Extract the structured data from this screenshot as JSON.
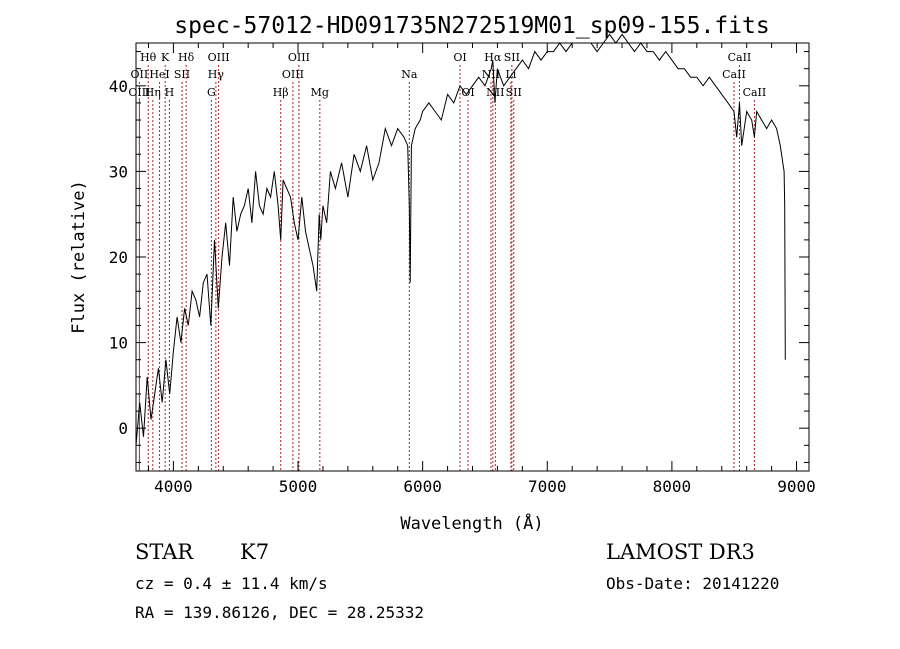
{
  "chart_data": {
    "type": "line",
    "title": "spec-57012-HD091735N272519M01_sp09-155.fits",
    "xlabel": "Wavelength (Å)",
    "ylabel": "Flux (relative)",
    "xlim": [
      3700,
      9100
    ],
    "ylim": [
      -5,
      45
    ],
    "xticks": [
      4000,
      5000,
      6000,
      7000,
      8000,
      9000
    ],
    "yticks": [
      0,
      10,
      20,
      30,
      40
    ],
    "grid": false,
    "line_color": "#000000",
    "marker_color": "#b22222",
    "series": [
      {
        "x": [
          3700,
          3730,
          3760,
          3790,
          3820,
          3850,
          3880,
          3910,
          3940,
          3970,
          4000,
          4030,
          4060,
          4090,
          4120,
          4150,
          4180,
          4210,
          4240,
          4270,
          4300,
          4330,
          4360,
          4390,
          4420,
          4450,
          4480,
          4510,
          4540,
          4570,
          4600,
          4630,
          4660,
          4690,
          4720,
          4750,
          4780,
          4810,
          4840,
          4861,
          4880,
          4910,
          4940,
          4970,
          5000,
          5030,
          5060,
          5090,
          5120,
          5150,
          5170,
          5183,
          5200,
          5230,
          5260,
          5300,
          5350,
          5400,
          5450,
          5500,
          5550,
          5600,
          5650,
          5700,
          5750,
          5800,
          5850,
          5880,
          5893,
          5900,
          5910,
          5940,
          5980,
          6000,
          6050,
          6100,
          6150,
          6200,
          6250,
          6300,
          6350,
          6400,
          6450,
          6500,
          6550,
          6563,
          6580,
          6600,
          6650,
          6700,
          6750,
          6800,
          6850,
          6900,
          6950,
          7000,
          7050,
          7100,
          7150,
          7200,
          7250,
          7300,
          7350,
          7400,
          7450,
          7500,
          7550,
          7600,
          7650,
          7700,
          7750,
          7800,
          7850,
          7900,
          7950,
          8000,
          8050,
          8100,
          8150,
          8200,
          8250,
          8300,
          8350,
          8400,
          8450,
          8498,
          8520,
          8542,
          8560,
          8600,
          8640,
          8662,
          8680,
          8720,
          8760,
          8800,
          8840,
          8870,
          8890,
          8900,
          8905,
          8910
        ],
        "y": [
          -2,
          3,
          -1,
          6,
          1,
          4,
          7,
          3,
          8,
          4,
          9,
          13,
          10,
          14,
          12,
          16,
          15,
          13,
          17,
          18,
          12,
          22,
          14,
          20,
          24,
          19,
          27,
          23,
          25,
          26,
          28,
          24,
          30,
          26,
          25,
          28,
          27,
          30,
          26,
          22,
          29,
          28,
          27,
          24,
          22,
          27,
          23,
          21,
          19,
          16,
          25,
          22,
          26,
          24,
          30,
          28,
          31,
          27,
          32,
          30,
          33,
          29,
          31,
          35,
          33,
          35,
          34,
          33,
          26,
          17,
          33,
          35,
          36,
          37,
          38,
          37,
          36,
          39,
          38,
          40,
          39,
          40,
          41,
          40,
          42,
          43,
          38,
          42,
          40,
          41,
          42,
          43,
          42,
          44,
          43,
          44,
          44,
          45,
          44,
          45,
          45,
          45,
          45,
          44,
          45,
          46,
          45,
          46,
          45,
          44,
          45,
          44,
          44,
          43,
          44,
          43,
          42,
          42,
          41,
          41,
          40,
          41,
          40,
          39,
          38,
          37,
          34,
          38,
          33,
          37,
          36,
          34,
          37,
          36,
          35,
          36,
          35,
          33,
          31,
          30,
          26,
          8
        ]
      }
    ],
    "line_markers": [
      {
        "label": "Hθ",
        "x": 3798,
        "row": 0
      },
      {
        "label": "OII",
        "x": 3727,
        "row": 1
      },
      {
        "label": "OIII",
        "x": 3727,
        "row": 2
      },
      {
        "label": "K",
        "x": 3934,
        "row": 0
      },
      {
        "label": "HeI",
        "x": 3889,
        "row": 1
      },
      {
        "label": "Hη",
        "x": 3835,
        "row": 2
      },
      {
        "label": "H",
        "x": 3968,
        "row": 2
      },
      {
        "label": "SII",
        "x": 4069,
        "row": 1
      },
      {
        "label": "Hδ",
        "x": 4102,
        "row": 0
      },
      {
        "label": "OIII",
        "x": 4363,
        "row": 0
      },
      {
        "label": "Hγ",
        "x": 4341,
        "row": 1
      },
      {
        "label": "G",
        "x": 4305,
        "row": 2
      },
      {
        "label": "Hβ",
        "x": 4861,
        "row": 2
      },
      {
        "label": "OIII",
        "x": 5007,
        "row": 0
      },
      {
        "label": "OIII",
        "x": 4959,
        "row": 1
      },
      {
        "label": "Mg",
        "x": 5175,
        "row": 2
      },
      {
        "label": "Na",
        "x": 5893,
        "row": 1
      },
      {
        "label": "OI",
        "x": 6300,
        "row": 0
      },
      {
        "label": "OI",
        "x": 6364,
        "row": 2
      },
      {
        "label": "Hα",
        "x": 6563,
        "row": 0
      },
      {
        "label": "NII",
        "x": 6548,
        "row": 1
      },
      {
        "label": "NII",
        "x": 6583,
        "row": 2
      },
      {
        "label": "SII",
        "x": 6716,
        "row": 0
      },
      {
        "label": "Li",
        "x": 6708,
        "row": 1
      },
      {
        "label": "SII",
        "x": 6731,
        "row": 2
      },
      {
        "label": "CaII",
        "x": 8542,
        "row": 0
      },
      {
        "label": "CaII",
        "x": 8498,
        "row": 1
      },
      {
        "label": "CaII",
        "x": 8662,
        "row": 2
      }
    ]
  },
  "info": {
    "object_class": "STAR",
    "subclass": "K7",
    "survey": "LAMOST DR3",
    "redshift": "cz = 0.4 ± 11.4 km/s",
    "obs_date": "Obs-Date: 20141220",
    "coords": "RA = 139.86126, DEC =  28.25332"
  }
}
